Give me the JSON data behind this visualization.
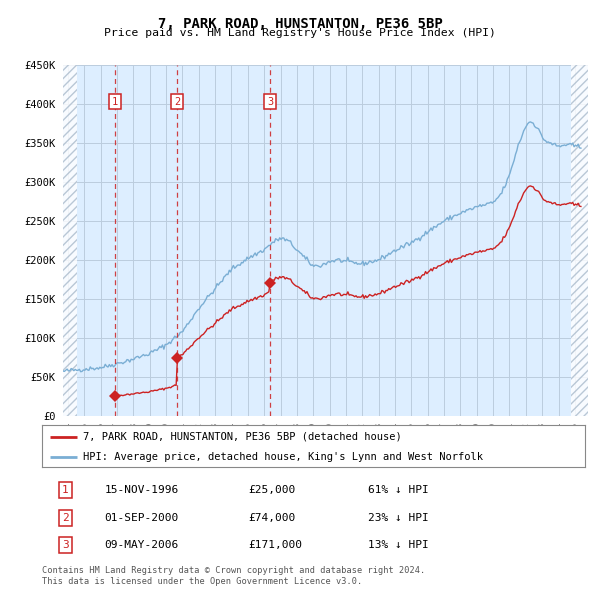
{
  "title": "7, PARK ROAD, HUNSTANTON, PE36 5BP",
  "subtitle": "Price paid vs. HM Land Registry's House Price Index (HPI)",
  "legend_line1": "7, PARK ROAD, HUNSTANTON, PE36 5BP (detached house)",
  "legend_line2": "HPI: Average price, detached house, King's Lynn and West Norfolk",
  "transactions": [
    {
      "num": 1,
      "date": "15-NOV-1996",
      "price": 25000,
      "hpi_pct": "61% ↓ HPI",
      "date_decimal": 1996.875
    },
    {
      "num": 2,
      "date": "01-SEP-2000",
      "price": 74000,
      "hpi_pct": "23% ↓ HPI",
      "date_decimal": 2000.667
    },
    {
      "num": 3,
      "date": "09-MAY-2006",
      "price": 171000,
      "hpi_pct": "13% ↓ HPI",
      "date_decimal": 2006.354
    }
  ],
  "footer_line1": "Contains HM Land Registry data © Crown copyright and database right 2024.",
  "footer_line2": "This data is licensed under the Open Government Licence v3.0.",
  "hpi_color": "#7aaed4",
  "price_color": "#cc2222",
  "background_color": "#ddeeff",
  "hatch_color": "#aabbcc",
  "grid_color": "#bbccdd",
  "ylim": [
    0,
    450000
  ],
  "yticks": [
    0,
    50000,
    100000,
    150000,
    200000,
    250000,
    300000,
    350000,
    400000,
    450000
  ],
  "xlim_start": 1993.7,
  "xlim_end": 2025.8,
  "hatch_left_end": 1994.58,
  "hatch_right_start": 2024.75
}
